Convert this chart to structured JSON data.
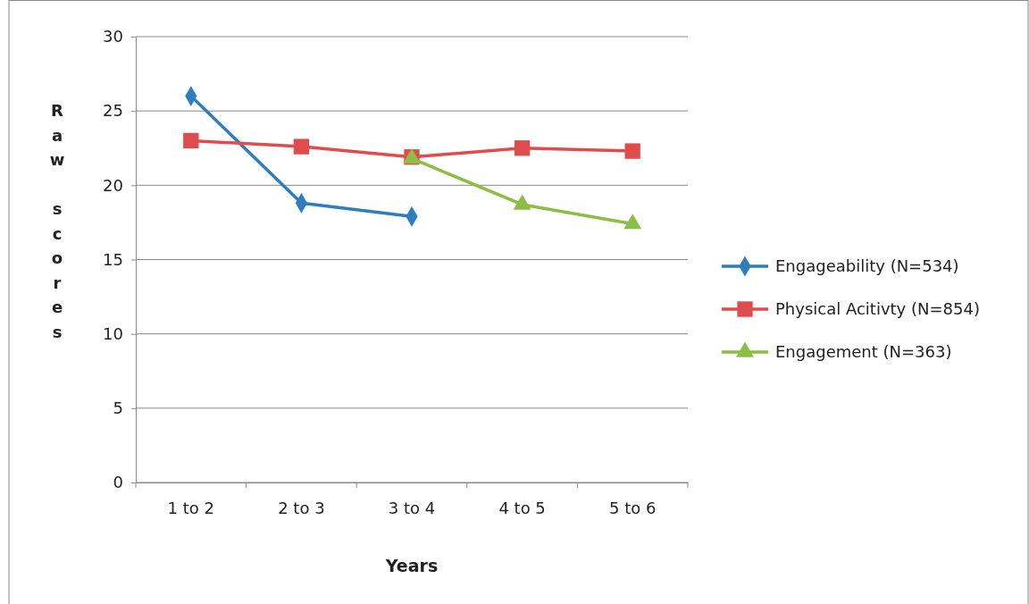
{
  "chart_data": {
    "type": "line",
    "xlabel": "Years",
    "ylabel": "Raw scores",
    "categories": [
      "1 to 2",
      "2 to 3",
      "3 to 4",
      "4 to 5",
      "5 to 6"
    ],
    "series": [
      {
        "name": "Engageability (N=534)",
        "color": "#2e7dbf",
        "marker": "diamond",
        "values": [
          26,
          18.8,
          17.9,
          null,
          null
        ]
      },
      {
        "name": "Physical Acitivty (N=854)",
        "color": "#e04b4b",
        "marker": "square",
        "values": [
          23,
          22.6,
          21.9,
          22.5,
          22.3
        ]
      },
      {
        "name": "Engagement (N=363)",
        "color": "#8cbd45",
        "marker": "triangle",
        "values": [
          null,
          null,
          21.8,
          18.7,
          17.4
        ]
      }
    ],
    "ylim": [
      0,
      30
    ],
    "yticks": [
      0,
      5,
      10,
      15,
      20,
      25,
      30
    ],
    "grid": "y",
    "legend": "right",
    "line_style": "solid"
  }
}
